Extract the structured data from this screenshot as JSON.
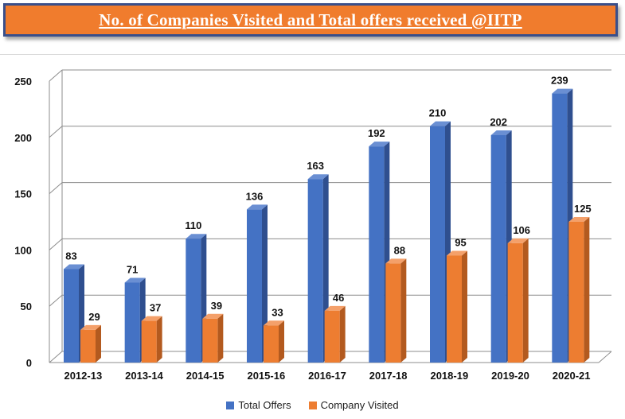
{
  "title": "No. of Companies Visited and Total offers received @IITP",
  "colors": {
    "total_offers": "#4472c4",
    "company_visited": "#ed7d31"
  },
  "chart_data": {
    "type": "bar",
    "categories": [
      "2012-13",
      "2013-14",
      "2014-15",
      "2015-16",
      "2016-17",
      "2017-18",
      "2018-19",
      "2019-20",
      "2020-21"
    ],
    "series": [
      {
        "name": "Total Offers",
        "values": [
          83,
          71,
          110,
          136,
          163,
          192,
          210,
          202,
          239
        ]
      },
      {
        "name": "Company Visited",
        "values": [
          29,
          37,
          39,
          33,
          46,
          88,
          95,
          106,
          125
        ]
      }
    ],
    "yticks": [
      "0",
      "50",
      "100",
      "150",
      "200",
      "250"
    ],
    "ylim": [
      0,
      250
    ],
    "legend": "bottom",
    "grid": true
  }
}
